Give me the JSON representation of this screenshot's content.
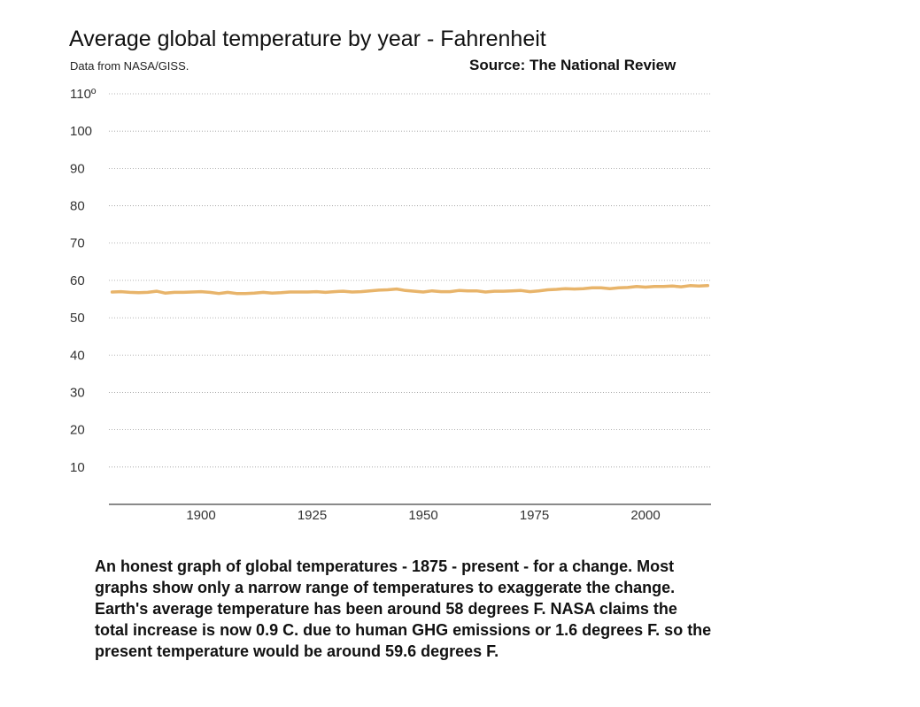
{
  "chart_data": {
    "type": "line",
    "title": "Average global temperature by year - Fahrenheit",
    "subtitle": "Data from NASA/GISS.",
    "source": "Source:  The National Review",
    "xlabel": "",
    "ylabel": "",
    "xlim": [
      1880,
      2015
    ],
    "ylim": [
      0,
      110
    ],
    "x_ticks": [
      1900,
      1925,
      1950,
      1975,
      2000
    ],
    "y_ticks": [
      10,
      20,
      30,
      40,
      50,
      60,
      70,
      80,
      90,
      100,
      110
    ],
    "y_tick_labels": [
      "10",
      "20",
      "30",
      "40",
      "50",
      "60",
      "70",
      "80",
      "90",
      "100",
      "110º"
    ],
    "grid": "horizontal dotted",
    "line_color": "#e8b46a",
    "series": [
      {
        "x": [
          1880,
          1882,
          1884,
          1886,
          1888,
          1890,
          1892,
          1894,
          1896,
          1898,
          1900,
          1902,
          1904,
          1906,
          1908,
          1910,
          1912,
          1914,
          1916,
          1918,
          1920,
          1922,
          1924,
          1926,
          1928,
          1930,
          1932,
          1934,
          1936,
          1938,
          1940,
          1942,
          1944,
          1946,
          1948,
          1950,
          1952,
          1954,
          1956,
          1958,
          1960,
          1962,
          1964,
          1966,
          1968,
          1970,
          1972,
          1974,
          1976,
          1978,
          1980,
          1982,
          1984,
          1986,
          1988,
          1990,
          1992,
          1994,
          1996,
          1998,
          2000,
          2002,
          2004,
          2006,
          2008,
          2010,
          2012,
          2014
        ],
        "values": [
          56.9,
          57.0,
          56.8,
          56.7,
          56.8,
          57.1,
          56.6,
          56.8,
          56.8,
          56.9,
          57.0,
          56.8,
          56.5,
          56.8,
          56.5,
          56.5,
          56.6,
          56.8,
          56.6,
          56.7,
          56.9,
          56.9,
          56.9,
          57.0,
          56.8,
          57.0,
          57.1,
          56.9,
          57.0,
          57.2,
          57.4,
          57.5,
          57.7,
          57.3,
          57.1,
          56.9,
          57.2,
          57.0,
          57.0,
          57.3,
          57.2,
          57.2,
          56.9,
          57.1,
          57.1,
          57.2,
          57.3,
          57.0,
          57.2,
          57.5,
          57.6,
          57.8,
          57.7,
          57.8,
          58.0,
          58.0,
          57.8,
          58.0,
          58.1,
          58.4,
          58.2,
          58.4,
          58.4,
          58.5,
          58.3,
          58.6,
          58.5,
          58.6
        ]
      }
    ]
  },
  "caption": {
    "lines": [
      "An honest graph of global temperatures - 1875 - present - for a change.  Most",
      "graphs show only a narrow range of temperatures to exaggerate the change.",
      "Earth's average temperature has been around 58 degrees F.  NASA claims the",
      "total increase is now 0.9 C. due to human GHG emissions or 1.6 degrees F. so the",
      "present temperature would be around 59.6 degrees F."
    ]
  }
}
